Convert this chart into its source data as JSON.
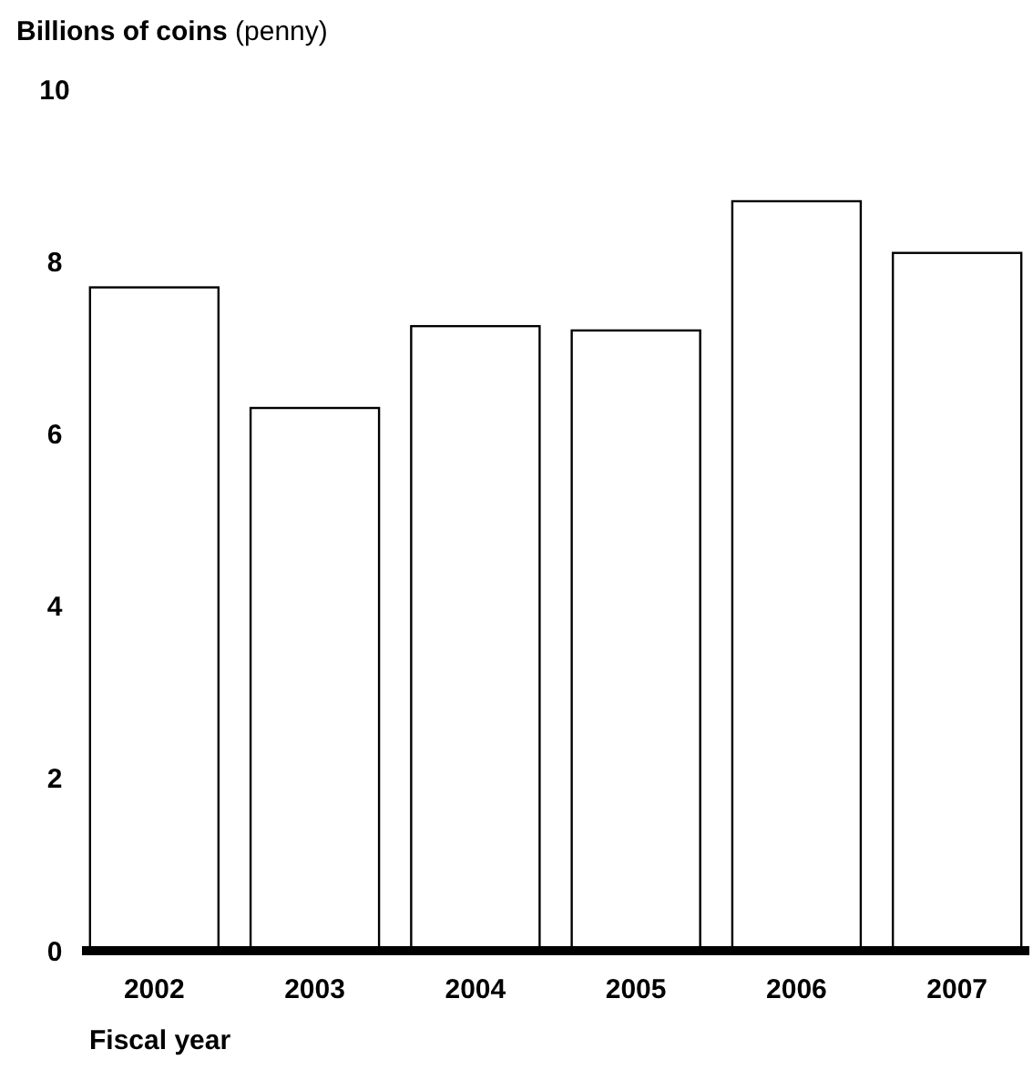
{
  "chart_data": {
    "type": "bar",
    "title": "Billions of coins",
    "subtitle": "(penny)",
    "xlabel": "Fiscal year",
    "categories": [
      "2002",
      "2003",
      "2004",
      "2005",
      "2006",
      "2007"
    ],
    "values": [
      7.7,
      6.3,
      7.25,
      7.2,
      8.7,
      8.1
    ],
    "color": "#ffffff",
    "ylim": [
      0,
      10
    ],
    "yticks": [
      0,
      2,
      4,
      6,
      8,
      10
    ],
    "grid": false
  }
}
